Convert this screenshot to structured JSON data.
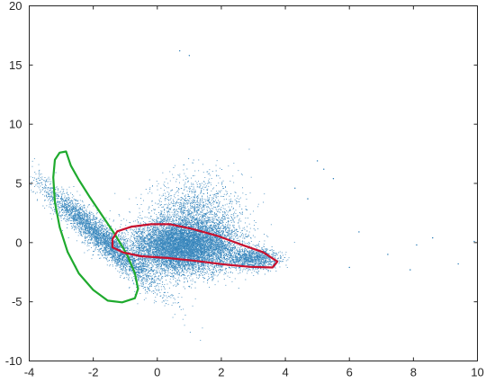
{
  "chart_data": {
    "type": "scatter",
    "title": "",
    "xlabel": "",
    "ylabel": "",
    "xlim": [
      -4,
      10
    ],
    "ylim": [
      -10,
      20
    ],
    "xticks": [
      -4,
      -2,
      0,
      2,
      4,
      6,
      8,
      10
    ],
    "yticks": [
      -10,
      -5,
      0,
      5,
      10,
      15,
      20
    ],
    "x_tick_labels": [
      "-4",
      "-2",
      "0",
      "2",
      "4",
      "6",
      "8",
      "10"
    ],
    "y_tick_labels": [
      "-10",
      "-5",
      "0",
      "5",
      "10",
      "15",
      "20"
    ],
    "grid": false,
    "box": true,
    "series": [
      {
        "kind": "scatter",
        "color": "#1f77b4",
        "clusters": [
          {
            "center": [
              0.8,
              -0.3
            ],
            "spread": [
              1.6,
              1.1
            ],
            "points": 9000
          },
          {
            "center": [
              -1.8,
              0.5
            ],
            "spread": [
              0.55,
              2.2
            ],
            "points": 3500,
            "tilt": -2.6
          },
          {
            "center": [
              1.2,
              2.5
            ],
            "spread": [
              1.4,
              1.6
            ],
            "points": 1500
          },
          {
            "center": [
              3.0,
              -1.4
            ],
            "spread": [
              0.8,
              0.45
            ],
            "points": 1200
          }
        ],
        "outliers": [
          [
            0.7,
            16.2
          ],
          [
            1.0,
            15.8
          ],
          [
            5.0,
            6.9
          ],
          [
            5.2,
            6.2
          ],
          [
            5.5,
            5.4
          ],
          [
            6.3,
            0.9
          ],
          [
            7.2,
            -1.0
          ],
          [
            8.1,
            -0.2
          ],
          [
            8.6,
            0.4
          ],
          [
            9.4,
            -1.8
          ],
          [
            9.9,
            0.1
          ],
          [
            4.3,
            4.6
          ],
          [
            4.7,
            3.7
          ],
          [
            6.0,
            -2.1
          ],
          [
            7.9,
            -2.3
          ]
        ]
      },
      {
        "kind": "contour",
        "color": "#1faa2e",
        "points": [
          [
            -3.05,
            7.6
          ],
          [
            -2.85,
            7.7
          ],
          [
            -2.7,
            6.5
          ],
          [
            -2.45,
            5.3
          ],
          [
            -2.1,
            3.8
          ],
          [
            -1.7,
            2.2
          ],
          [
            -1.3,
            0.6
          ],
          [
            -0.95,
            -1.0
          ],
          [
            -0.7,
            -2.6
          ],
          [
            -0.6,
            -3.9
          ],
          [
            -0.7,
            -4.7
          ],
          [
            -1.1,
            -5.05
          ],
          [
            -1.55,
            -4.9
          ],
          [
            -2.0,
            -4.0
          ],
          [
            -2.45,
            -2.6
          ],
          [
            -2.8,
            -0.8
          ],
          [
            -3.05,
            1.3
          ],
          [
            -3.2,
            3.4
          ],
          [
            -3.25,
            5.5
          ],
          [
            -3.2,
            7.0
          ]
        ]
      },
      {
        "kind": "contour",
        "color": "#c8102e",
        "points": [
          [
            -1.4,
            0.3
          ],
          [
            -1.25,
            0.95
          ],
          [
            -0.8,
            1.35
          ],
          [
            -0.2,
            1.55
          ],
          [
            0.4,
            1.55
          ],
          [
            1.1,
            1.15
          ],
          [
            1.9,
            0.55
          ],
          [
            2.6,
            -0.15
          ],
          [
            3.3,
            -0.8
          ],
          [
            3.75,
            -1.6
          ],
          [
            3.6,
            -2.1
          ],
          [
            2.9,
            -2.05
          ],
          [
            2.1,
            -1.85
          ],
          [
            1.2,
            -1.55
          ],
          [
            0.3,
            -1.3
          ],
          [
            -0.5,
            -1.15
          ],
          [
            -1.05,
            -0.85
          ],
          [
            -1.4,
            -0.4
          ]
        ]
      }
    ]
  }
}
